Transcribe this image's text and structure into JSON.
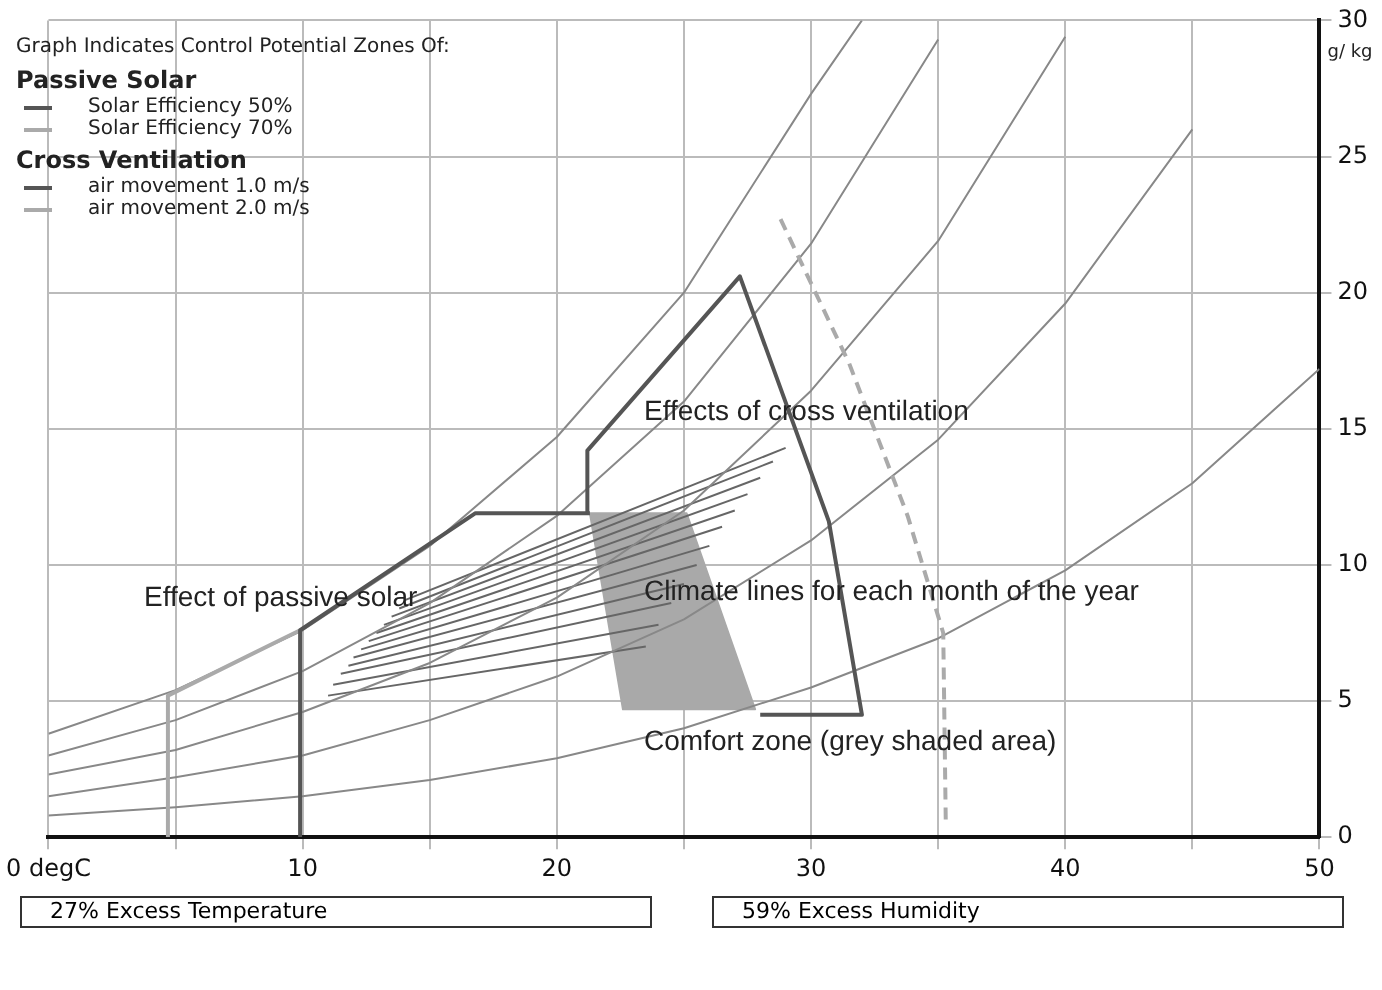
{
  "chart_data": {
    "type": "line",
    "title": "Graph Indicates Control Potential Zones Of:",
    "ylabel": "g/ kg",
    "xlim": [
      0,
      50
    ],
    "ylim": [
      0,
      30
    ],
    "xticks": [
      {
        "value": 0,
        "label": "0 degC"
      },
      {
        "value": 5,
        "label": null
      },
      10,
      {
        "value": 15,
        "label": null
      },
      20,
      {
        "value": 25,
        "label": null
      },
      30,
      {
        "value": 35,
        "label": null
      },
      40,
      {
        "value": 45,
        "label": null
      },
      50
    ],
    "yticks": [
      0,
      5,
      10,
      15,
      20,
      25,
      30
    ],
    "grid": true,
    "legend": "top left",
    "series": [
      {
        "name": "Solar Efficiency 50%",
        "color": "#555555",
        "x": [
          9.9,
          9.9,
          16.8,
          21.3
        ],
        "values": [
          0,
          7.6,
          11.9,
          11.9
        ]
      },
      {
        "name": "Solar Efficiency 70%",
        "color": "#aaaaaa",
        "x": [
          4.7,
          4.7,
          9.9
        ],
        "values": [
          0,
          5.2,
          7.6
        ]
      },
      {
        "name": "air movement 1.0 m/s",
        "color": "#555555",
        "x": [
          21.2,
          21.2,
          27.2,
          30.7,
          32,
          28
        ],
        "values": [
          11.9,
          14.2,
          20.6,
          11.6,
          4.5,
          4.5
        ]
      },
      {
        "name": "air movement 2.0 m/s",
        "color": "#aaaaaa",
        "line_style": "dashed",
        "x": [
          28.8,
          31.5,
          33.8,
          35.2,
          35.3
        ],
        "values": [
          22.7,
          17.4,
          11.8,
          7.5,
          0.5
        ]
      },
      {
        "type": "area",
        "color": "#a9a9a9",
        "x": [
          21.3,
          25.1,
          27.8,
          22.6,
          21.3
        ],
        "values": [
          11.9,
          11.9,
          4.7,
          4.7,
          11.9
        ]
      },
      {
        "color": "#888888",
        "x": [
          0,
          5,
          10,
          15,
          20,
          25,
          30,
          32
        ],
        "values": [
          3.8,
          5.4,
          7.6,
          10.7,
          14.7,
          20,
          27.3,
          30
        ]
      },
      {
        "color": "#888888",
        "x": [
          0,
          5,
          10,
          15,
          20,
          25,
          30,
          35
        ],
        "values": [
          3,
          4.3,
          6.1,
          8.6,
          11.8,
          16,
          21.8,
          29.3
        ]
      },
      {
        "color": "#888888",
        "x": [
          0,
          5,
          10,
          15,
          20,
          25,
          30,
          35,
          40
        ],
        "values": [
          2.3,
          3.2,
          4.6,
          6.4,
          8.8,
          12,
          16.4,
          21.9,
          29.4
        ]
      },
      {
        "color": "#888888",
        "x": [
          0,
          5,
          10,
          15,
          20,
          25,
          30,
          35,
          40,
          45
        ],
        "values": [
          1.5,
          2.2,
          3,
          4.3,
          5.9,
          8,
          10.9,
          14.6,
          19.6,
          26
        ]
      },
      {
        "color": "#888888",
        "x": [
          0,
          5,
          10,
          15,
          20,
          25,
          30,
          35,
          40,
          45,
          50
        ],
        "values": [
          0.8,
          1.1,
          1.5,
          2.1,
          2.9,
          4,
          5.5,
          7.3,
          9.8,
          13,
          17.2
        ]
      },
      {
        "color": "#666666",
        "x": [
          11.0,
          23.5
        ],
        "values": [
          5.2,
          7.0
        ]
      },
      {
        "color": "#666666",
        "x": [
          11.2,
          24.0
        ],
        "values": [
          5.6,
          7.8
        ]
      },
      {
        "color": "#666666",
        "x": [
          11.5,
          24.5
        ],
        "values": [
          6.0,
          8.6
        ]
      },
      {
        "color": "#666666",
        "x": [
          11.8,
          25.0
        ],
        "values": [
          6.3,
          9.3
        ]
      },
      {
        "color": "#666666",
        "x": [
          12.0,
          25.5
        ],
        "values": [
          6.6,
          10.0
        ]
      },
      {
        "color": "#666666",
        "x": [
          12.3,
          26.0
        ],
        "values": [
          6.9,
          10.7
        ]
      },
      {
        "color": "#666666",
        "x": [
          12.6,
          26.5
        ],
        "values": [
          7.2,
          11.4
        ]
      },
      {
        "color": "#666666",
        "x": [
          12.9,
          27.0
        ],
        "values": [
          7.5,
          12.0
        ]
      },
      {
        "color": "#666666",
        "x": [
          13.2,
          27.5
        ],
        "values": [
          7.8,
          12.6
        ]
      },
      {
        "color": "#666666",
        "x": [
          13.5,
          28.0
        ],
        "values": [
          8.1,
          13.2
        ]
      },
      {
        "color": "#666666",
        "x": [
          13.8,
          28.5
        ],
        "values": [
          8.4,
          13.8
        ]
      },
      {
        "color": "#666666",
        "x": [
          14.0,
          29.0
        ],
        "values": [
          8.7,
          14.3
        ]
      }
    ],
    "annotations": [
      "Passive Solar",
      "Cross Ventilation",
      "Effects of cross ventilation",
      "Effect of passive solar",
      "Climate lines for each month of the year",
      "Comfort zone (grey shaded area)",
      "27% Excess Temperature",
      "59% Excess Humidity"
    ]
  }
}
